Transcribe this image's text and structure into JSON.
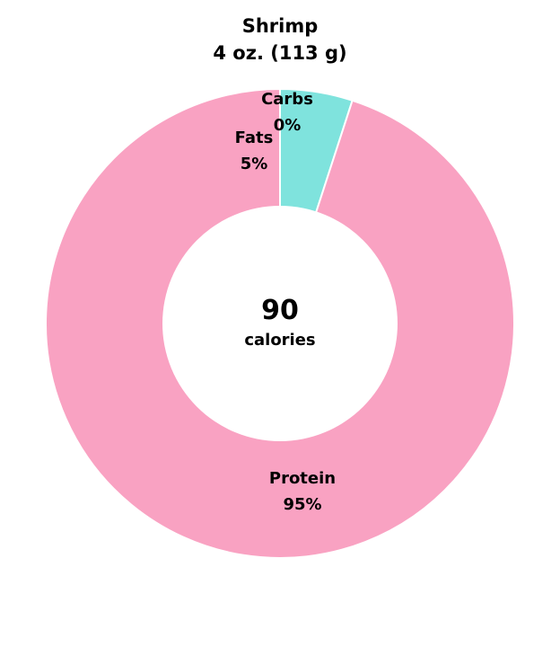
{
  "title": {
    "line1": "Shrimp",
    "line2": "4 oz. (113 g)"
  },
  "center": {
    "value": "90",
    "label": "calories"
  },
  "chart_data": {
    "type": "pie",
    "title": "Shrimp",
    "subtitle": "4 oz. (113 g)",
    "slices": [
      {
        "name": "Carbs",
        "value": 0,
        "label": "0%",
        "color": "#7fe3dd"
      },
      {
        "name": "Fats",
        "value": 5,
        "label": "5%",
        "color": "#7fe3dd"
      },
      {
        "name": "Protein",
        "value": 95,
        "label": "95%",
        "color": "#f9a2c2"
      }
    ]
  }
}
